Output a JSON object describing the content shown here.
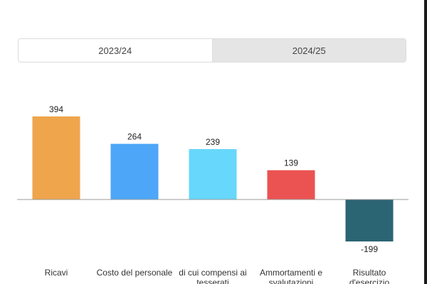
{
  "tabs": [
    {
      "label": "2023/24",
      "active": true
    },
    {
      "label": "2024/25",
      "active": false
    }
  ],
  "chart_data": {
    "type": "bar",
    "categories": [
      "Ricavi",
      "Costo del personale",
      "di cui compensi ai tesserati",
      "Ammortamenti e svalutazioni",
      "Risultato d'esercizio"
    ],
    "values": [
      394,
      264,
      239,
      139,
      -199
    ],
    "colors": [
      "#EFA54C",
      "#4DA6F7",
      "#67D7FB",
      "#EB5352",
      "#2B6473"
    ],
    "title": "",
    "xlabel": "",
    "ylabel": "",
    "grid": false,
    "legend": false
  }
}
